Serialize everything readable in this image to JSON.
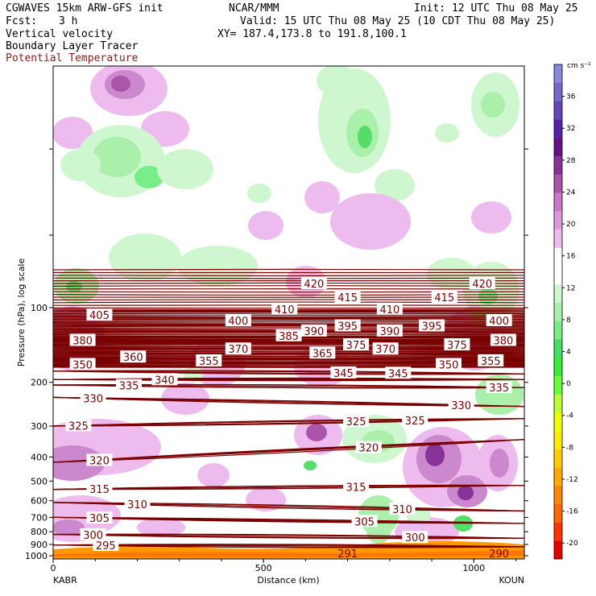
{
  "header": {
    "model": "CGWAVES 15km ARW-GFS init",
    "org": "NCAR/MMM",
    "init": "Init: 12 UTC Thu 08 May 25",
    "fcst_label": "Fcst:",
    "fcst_value": "3 h",
    "valid": "Valid: 15 UTC Thu 08 May 25 (10 CDT Thu 08 May 25)",
    "field1": "Vertical velocity",
    "field2": "Boundary Layer Tracer",
    "field3": "Potential Temperature",
    "xy": "XY= 187.4,173.8 to 191.8,100.1",
    "field3_color": "#8b1a1a"
  },
  "chart_data": {
    "type": "heatmap",
    "xlabel": "Distance (km)",
    "ylabel": "Pressure (hPa), log scale",
    "xlim": [
      0,
      1120
    ],
    "x_ticks": [
      0,
      500,
      1000
    ],
    "x_end_labels": {
      "left": "KABR",
      "right": "KOUN"
    },
    "ylim": [
      1030,
      0
    ],
    "y_ticks": [
      100,
      200,
      300,
      400,
      500,
      600,
      700,
      800,
      900,
      1000
    ],
    "colorbar": {
      "units": "cm s⁻¹",
      "labels": [
        36,
        32,
        28,
        24,
        20,
        16,
        12,
        8,
        4,
        0,
        -4,
        -8,
        -12,
        -16,
        -20
      ],
      "colors": [
        "#e60000",
        "#ff3300",
        "#ff6600",
        "#ff8800",
        "#ffaa00",
        "#ffcc00",
        "#ffee00",
        "#eeff00",
        "#bbff33",
        "#66ff33",
        "#33ee33",
        "#44dd66",
        "#77ee88",
        "#aaf0aa",
        "#cff7cf",
        "#ffffff",
        "#ffffff",
        "#eebbee",
        "#dd99dd",
        "#cc77cc",
        "#aa55aa",
        "#883399",
        "#661188",
        "#5522aa",
        "#6644bb",
        "#7766cc",
        "#8888dd"
      ],
      "colors_note": "bottom to top"
    },
    "isentropes": [
      {
        "theta": 295,
        "label_x": [
          125
        ]
      },
      {
        "theta": 300,
        "label_x": [
          95,
          860
        ]
      },
      {
        "theta": 305,
        "label_x": [
          110,
          740
        ]
      },
      {
        "theta": 310,
        "label_x": [
          200,
          830
        ]
      },
      {
        "theta": 315,
        "label_x": [
          110,
          720
        ]
      },
      {
        "theta": 320,
        "label_x": [
          110,
          750
        ]
      },
      {
        "theta": 325,
        "label_x": [
          60,
          720,
          860
        ]
      },
      {
        "theta": 330,
        "label_x": [
          95,
          970
        ]
      },
      {
        "theta": 335,
        "label_x": [
          180,
          1060
        ]
      },
      {
        "theta": 340,
        "label_x": [
          265
        ]
      },
      {
        "theta": 345,
        "label_x": [
          690,
          820
        ]
      },
      {
        "theta": 350,
        "label_x": [
          70,
          940
        ]
      },
      {
        "theta": 355,
        "label_x": [
          370,
          1040
        ]
      },
      {
        "theta": 360,
        "label_x": [
          190
        ]
      },
      {
        "theta": 365,
        "label_x": [
          640
        ]
      },
      {
        "theta": 370,
        "label_x": [
          440,
          790
        ]
      },
      {
        "theta": 375,
        "label_x": [
          720,
          960
        ]
      },
      {
        "theta": 380,
        "label_x": [
          70,
          1070
        ]
      },
      {
        "theta": 385,
        "label_x": [
          560
        ]
      },
      {
        "theta": 390,
        "label_x": [
          620,
          800
        ]
      },
      {
        "theta": 395,
        "label_x": [
          700,
          900
        ]
      },
      {
        "theta": 400,
        "label_x": [
          440,
          1060
        ]
      },
      {
        "theta": 405,
        "label_x": [
          110
        ]
      },
      {
        "theta": 410,
        "label_x": [
          550,
          800
        ]
      },
      {
        "theta": 415,
        "label_x": [
          700,
          930
        ]
      },
      {
        "theta": 420,
        "label_x": [
          620,
          1020
        ]
      }
    ],
    "surface_labels": [
      {
        "text": "291",
        "x": 700
      },
      {
        "text": "290",
        "x": 1060
      }
    ]
  }
}
